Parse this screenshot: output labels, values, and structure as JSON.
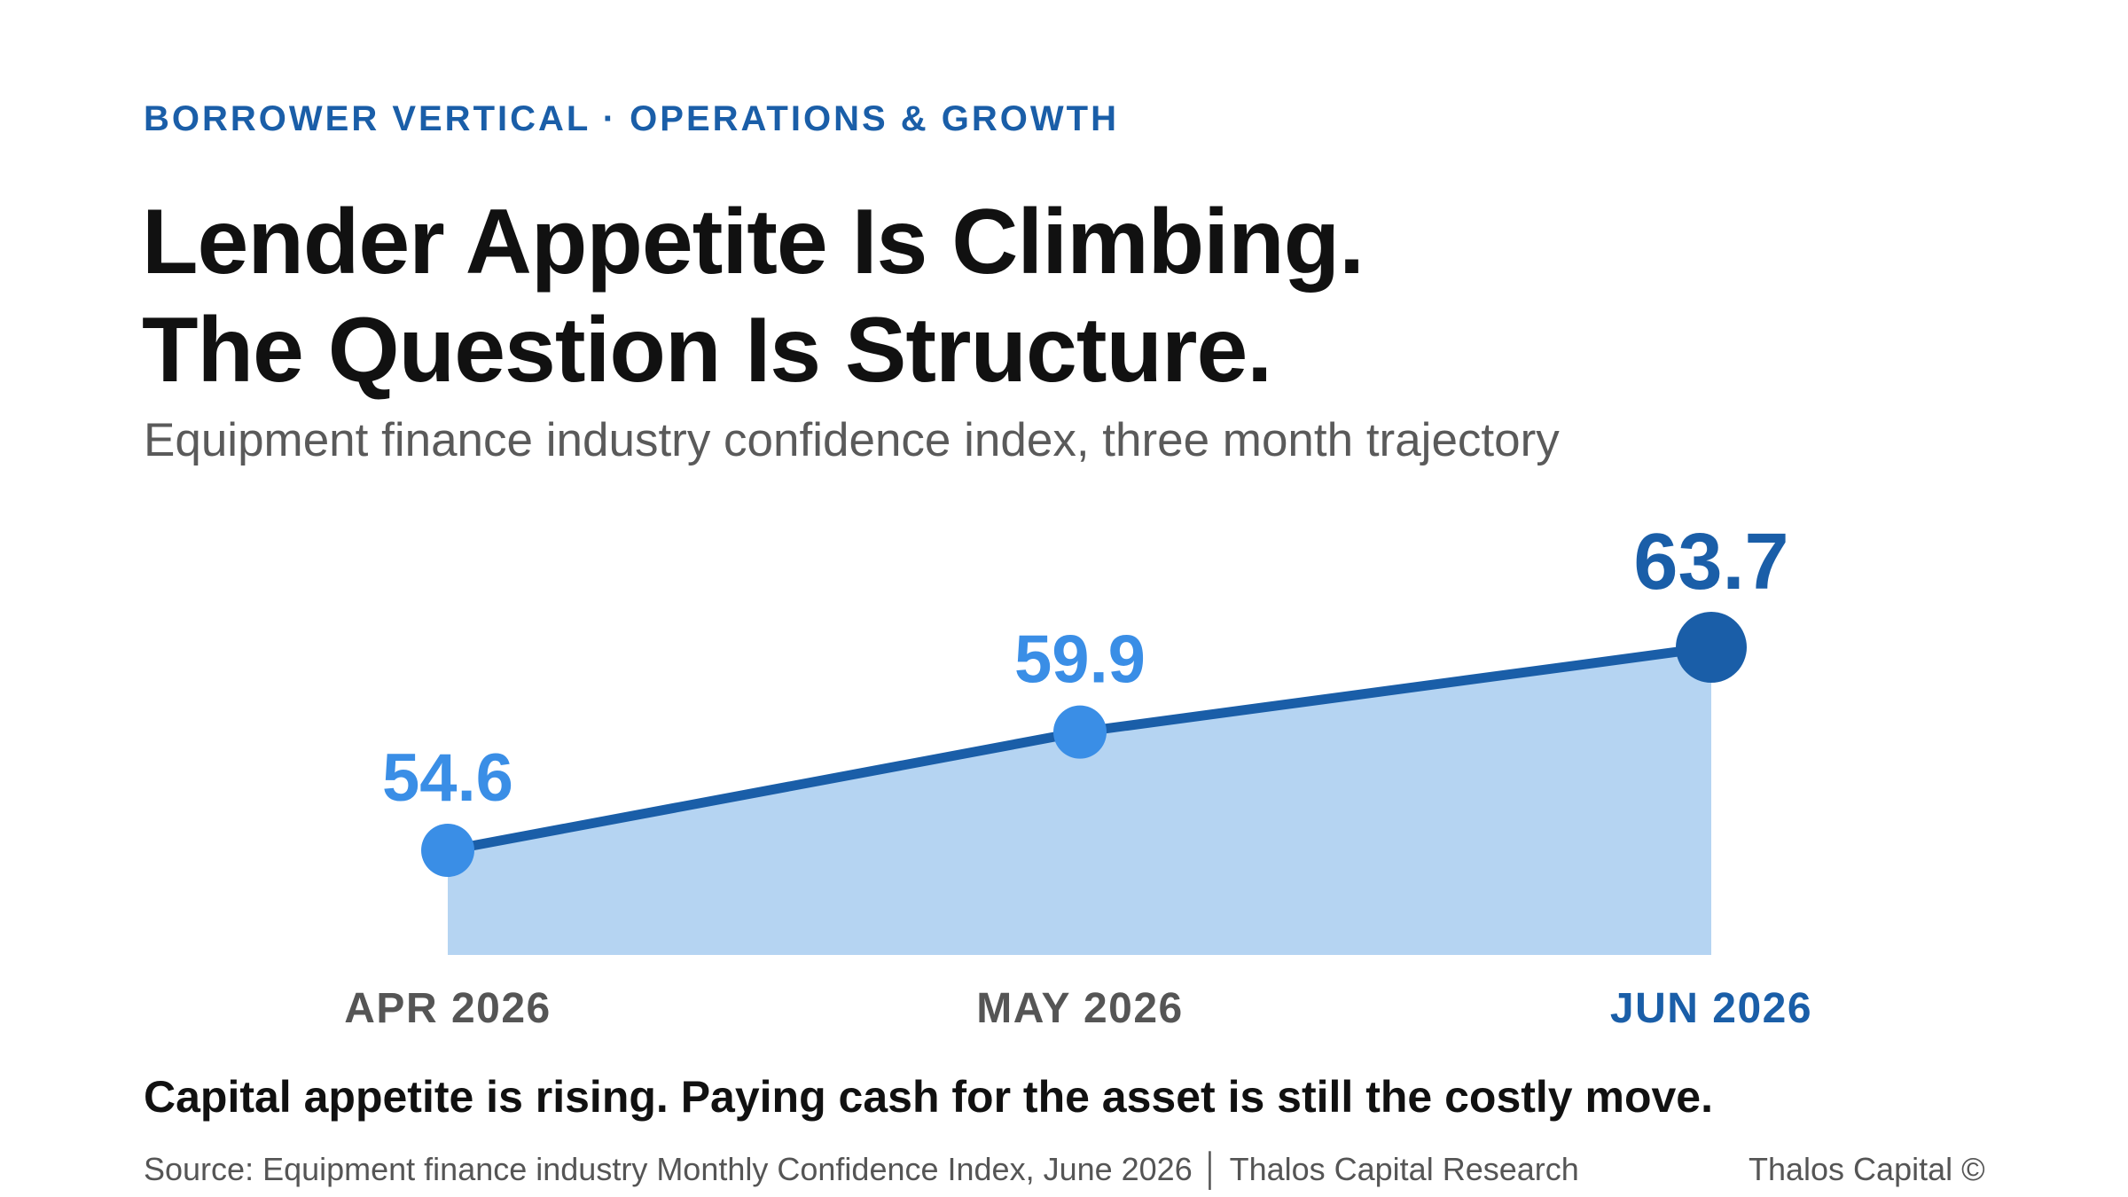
{
  "eyebrow": "BORROWER VERTICAL · OPERATIONS & GROWTH",
  "headline": {
    "line1": "Lender Appetite Is Climbing.",
    "line2": "The Question Is Structure."
  },
  "subtitle": "Equipment finance industry confidence index, three month trajectory",
  "chart_data": {
    "type": "area",
    "categories": [
      "APR 2026",
      "MAY 2026",
      "JUN 2026"
    ],
    "values": [
      54.6,
      59.9,
      63.7
    ],
    "data_labels": [
      "54.6",
      "59.9",
      "63.7"
    ],
    "grid": false,
    "legend": "none",
    "colors": {
      "line": "#1a5ea8",
      "fill": "#b5d4f2",
      "point": "#3a8ee6",
      "highlight": "#1a5ea8",
      "label": "#3a8ee6",
      "axis_label": "#555555"
    },
    "highlight_index": 2
  },
  "takeaway": "Capital appetite is rising. Paying cash for the asset is still the costly move.",
  "footer": {
    "source": "Source: Equipment finance industry Monthly Confidence Index, June 2026 │ Thalos Capital Research",
    "brand": "Thalos Capital ©"
  }
}
